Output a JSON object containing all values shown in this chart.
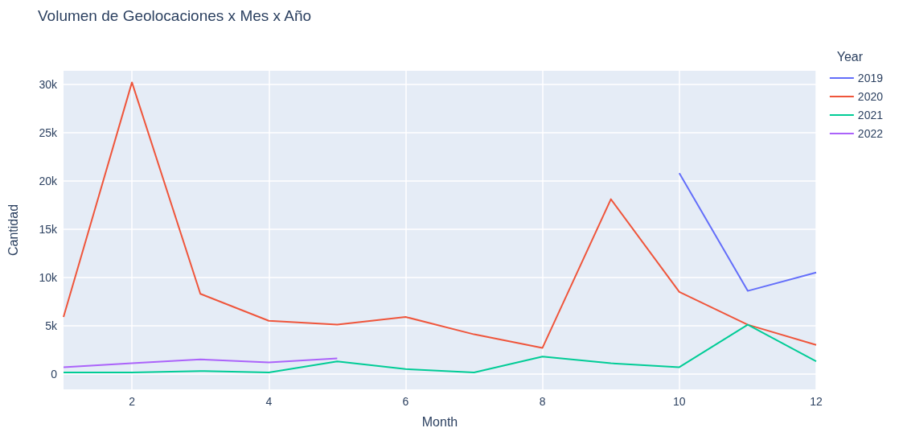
{
  "chart_data": {
    "type": "line",
    "title": "Volumen de Geolocaciones x Mes x Año",
    "xlabel": "Month",
    "ylabel": "Cantidad",
    "legend_title": "Year",
    "xlim": [
      1,
      12
    ],
    "xticks": [
      2,
      4,
      6,
      8,
      10,
      12
    ],
    "ylim": [
      -1600,
      31400
    ],
    "yticks": [
      {
        "value": 0,
        "label": "0"
      },
      {
        "value": 5000,
        "label": "5k"
      },
      {
        "value": 10000,
        "label": "10k"
      },
      {
        "value": 15000,
        "label": "15k"
      },
      {
        "value": 20000,
        "label": "20k"
      },
      {
        "value": 25000,
        "label": "25k"
      },
      {
        "value": 30000,
        "label": "30k"
      }
    ],
    "grid": true,
    "legend": "top right",
    "marker": "none",
    "series": [
      {
        "name": "2019",
        "color": "#636efa",
        "x": [
          10,
          11,
          12
        ],
        "values": [
          20800,
          8600,
          10500
        ]
      },
      {
        "name": "2020",
        "color": "#ef553b",
        "x": [
          1,
          2,
          3,
          4,
          5,
          6,
          7,
          8,
          9,
          10,
          11,
          12
        ],
        "values": [
          5900,
          30200,
          8300,
          5500,
          5100,
          5900,
          4100,
          2700,
          18100,
          8500,
          5100,
          3000
        ]
      },
      {
        "name": "2021",
        "color": "#00cc96",
        "x": [
          1,
          2,
          3,
          4,
          5,
          6,
          7,
          8,
          9,
          10,
          11,
          12
        ],
        "values": [
          150,
          150,
          300,
          150,
          1300,
          500,
          150,
          1800,
          1100,
          700,
          5100,
          1300
        ]
      },
      {
        "name": "2022",
        "color": "#ab63fa",
        "x": [
          1,
          2,
          3,
          4,
          5
        ],
        "values": [
          700,
          1100,
          1500,
          1200,
          1600
        ]
      }
    ]
  }
}
